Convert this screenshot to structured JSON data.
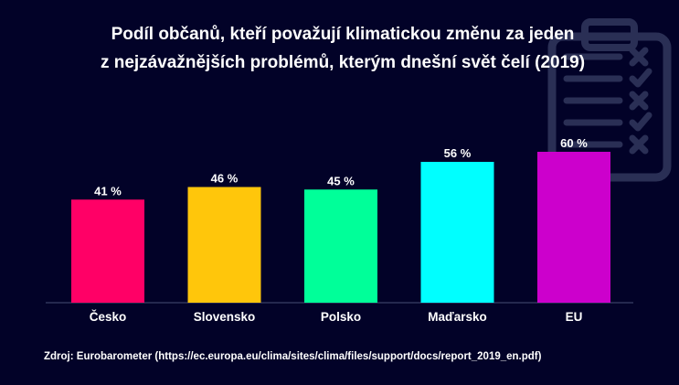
{
  "chart_data": {
    "type": "bar",
    "title": [
      "Podíl občanů, kteří považují klimatickou změnu za jeden",
      "z nejzávažnějších problémů, kterým dnešní svět čelí (2019)"
    ],
    "categories": [
      "Česko",
      "Slovensko",
      "Polsko",
      "Maďarsko",
      "EU"
    ],
    "values": [
      41,
      46,
      45,
      56,
      60
    ],
    "value_labels": [
      "41 %",
      "46 %",
      "45 %",
      "56 %",
      "60 %"
    ],
    "colors": [
      "#ff0066",
      "#ffc60b",
      "#00ff99",
      "#00ffff",
      "#cc00cc"
    ],
    "ylim": [
      0,
      100
    ],
    "grid": false,
    "legend": "none",
    "xlabel": "",
    "ylabel": ""
  },
  "source": "Zdroj: Eurobarometer (https://ec.europa.eu/clima/sites/clima/files/support/docs/report_2019_en.pdf)",
  "decoration": {
    "icon": "clipboard-checklist-icon",
    "color": "#2a2f55"
  },
  "theme": {
    "background": "#020228",
    "text": "#ffffff",
    "axis": "#3a3f66"
  }
}
